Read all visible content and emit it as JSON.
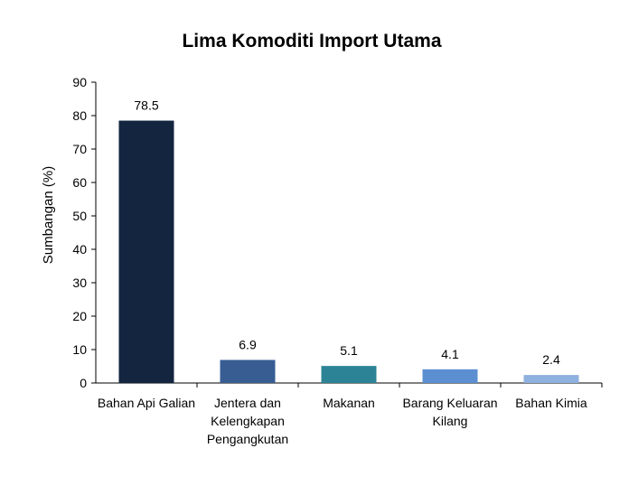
{
  "chart_data": {
    "type": "bar",
    "title": "Lima Komoditi Import Utama",
    "xlabel": "",
    "ylabel": "Sumbangan (%)",
    "ylim": [
      0,
      90
    ],
    "yticks": [
      0,
      10,
      20,
      30,
      40,
      50,
      60,
      70,
      80,
      90
    ],
    "grid": false,
    "categories": [
      [
        "Bahan Api Galian"
      ],
      [
        "Jentera dan",
        "Kelengkapan",
        "Pengangkutan"
      ],
      [
        "Makanan"
      ],
      [
        "Barang Keluaran",
        "Kilang"
      ],
      [
        "Bahan Kimia"
      ]
    ],
    "values": [
      78.5,
      6.9,
      5.1,
      4.1,
      2.4
    ],
    "data_labels": [
      "78.5",
      "6.9",
      "5.1",
      "4.1",
      "2.4"
    ],
    "colors": [
      "#13253F",
      "#375D93",
      "#2C8396",
      "#5C8FD2",
      "#8FB1DF"
    ]
  }
}
